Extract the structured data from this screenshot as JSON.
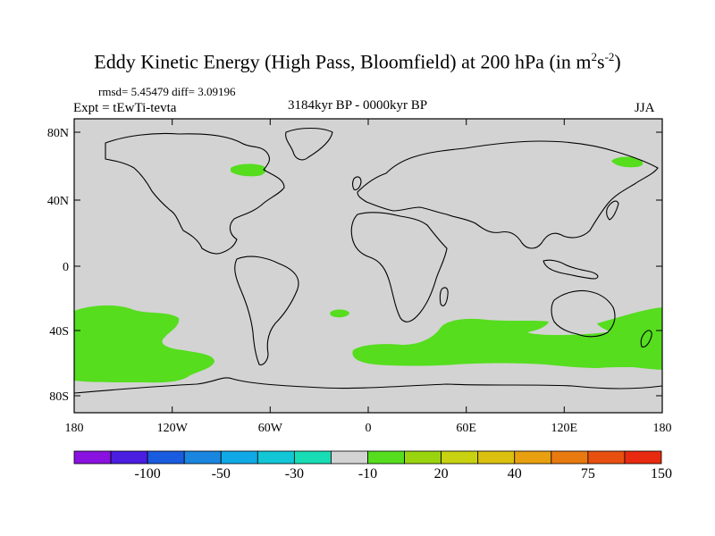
{
  "title": {
    "main": "Eddy Kinetic Energy (High Pass, Bloomfield) at 200 hPa (in m",
    "sup1": "2",
    "mid": "s",
    "sup2": "-2",
    "close": ")"
  },
  "stats": "rmsd= 5.45479 diff= 3.09196",
  "expt": "Expt = tEwTi-tevta",
  "period": "3184kyr BP - 0000kyr BP",
  "season": "JJA",
  "axes": {
    "lat_labels": [
      "80N",
      "40N",
      "0",
      "40S",
      "80S"
    ],
    "lon_labels": [
      "180",
      "120W",
      "60W",
      "0",
      "60E",
      "120E",
      "180"
    ]
  },
  "colorbar": {
    "colors": [
      "#8a12e0",
      "#4a1de0",
      "#1a5ce0",
      "#1a86e0",
      "#10a8e6",
      "#12c6d6",
      "#18dcb4",
      "#d3d3d3",
      "#55dd1e",
      "#9ad40e",
      "#c8d210",
      "#dcc010",
      "#e8a010",
      "#e87a10",
      "#e85010",
      "#e82a10"
    ],
    "labels": [
      "-100",
      "-50",
      "-30",
      "-10",
      "20",
      "40",
      "75",
      "150"
    ]
  },
  "map": {
    "background_color": "#d3d3d3",
    "anomaly_color": "#55dd1e"
  }
}
